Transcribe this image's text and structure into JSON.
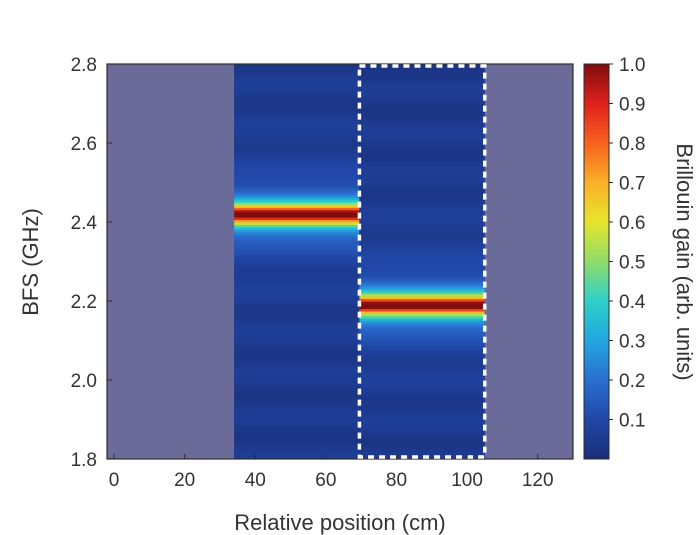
{
  "chart_data": {
    "type": "heatmap",
    "xlabel": "Relative position (cm)",
    "ylabel": "BFS (GHz)",
    "xlim": [
      -2,
      130
    ],
    "ylim": [
      1.8,
      2.8
    ],
    "x_ticks": [
      "0",
      "20",
      "40",
      "60",
      "80",
      "100",
      "120"
    ],
    "y_ticks": [
      "1.8",
      "2.0",
      "2.2",
      "2.4",
      "2.6",
      "2.8"
    ],
    "colorbar": {
      "label": "Brillouin gain (arb. units)",
      "range": [
        0,
        1.0
      ],
      "ticks": [
        "0.1",
        "0.2",
        "0.3",
        "0.4",
        "0.5",
        "0.6",
        "0.7",
        "0.8",
        "0.9",
        "1.0"
      ]
    },
    "masked_regions": [
      {
        "x_range": [
          -2,
          34
        ],
        "color": "#6b6b99"
      },
      {
        "x_range": [
          105,
          130
        ],
        "color": "#6b6b99"
      }
    ],
    "gain_segments": [
      {
        "x_range": [
          34,
          69.5
        ],
        "peak_bfs_ghz": 2.42,
        "peak_gain": 1.0
      },
      {
        "x_range": [
          69.5,
          105
        ],
        "peak_bfs_ghz": 2.19,
        "peak_gain": 1.0
      }
    ],
    "highlight_box": {
      "x_range": [
        69.5,
        105
      ],
      "y_range": [
        1.8,
        2.8
      ],
      "style": "dashed",
      "color": "#ffffff"
    }
  }
}
